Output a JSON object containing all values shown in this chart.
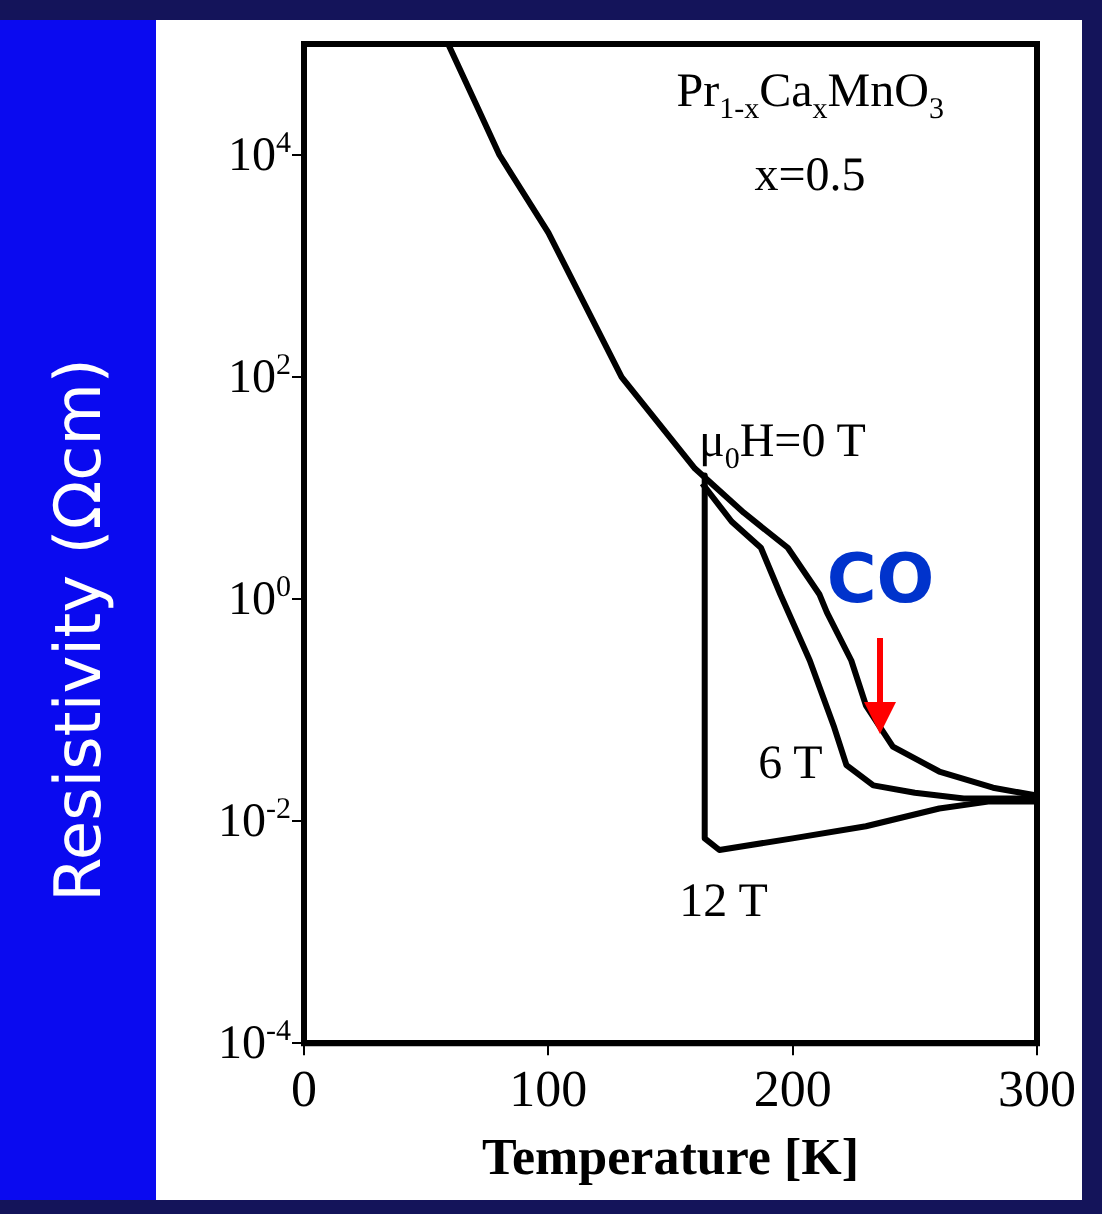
{
  "chart_data": {
    "type": "line",
    "xlabel": "Temperature [K]",
    "ylabel": "Resistivity (Ωcm)",
    "log": "y",
    "grid": false,
    "legend": false,
    "marker": "none",
    "line_style": "solid",
    "xlim": [
      0,
      300
    ],
    "xticks": [
      0,
      100,
      200,
      300
    ],
    "ylim": [
      0.0001,
      100000
    ],
    "yticks": [
      {
        "value": 0.0001,
        "label": "10$^{-4}$"
      },
      {
        "value": 0.01,
        "label": "10$^{-2}$"
      },
      {
        "value": 1,
        "label": "10$^{0}$"
      },
      {
        "value": 100,
        "label": "10$^{2}$"
      },
      {
        "value": 10000,
        "label": "10$^{4}$"
      }
    ],
    "series": [
      {
        "name": "μ$_{0}$H=0 T",
        "color": "#000000",
        "x": [
          59,
          70,
          80,
          100,
          130,
          160,
          180,
          198,
          211,
          214,
          224,
          230,
          241,
          260,
          282,
          300
        ],
        "values": [
          100000,
          30000,
          10000,
          2000,
          100,
          15,
          6,
          2.9,
          1.1,
          0.76,
          0.28,
          0.11,
          0.047,
          0.028,
          0.02,
          0.017
        ]
      },
      {
        "name": "6 T",
        "color": "#000000",
        "x": [
          163,
          175,
          187,
          195,
          207,
          217,
          222,
          233,
          250,
          270,
          300
        ],
        "values": [
          11,
          5,
          2.9,
          1.1,
          0.28,
          0.07,
          0.032,
          0.021,
          0.018,
          0.016,
          0.016
        ]
      },
      {
        "name": "12 T",
        "color": "#000000",
        "x": [
          164,
          164,
          170,
          200,
          230,
          260,
          280,
          300
        ],
        "values": [
          13,
          0.007,
          0.0055,
          0.007,
          0.009,
          0.013,
          0.015,
          0.015
        ]
      }
    ],
    "annotations": [
      "Pr$_{1-x}$Ca$_{x}$MnO$_{3}$",
      "x=0.5",
      {
        "text": "CO",
        "x": 236,
        "y": 0.06
      }
    ]
  }
}
